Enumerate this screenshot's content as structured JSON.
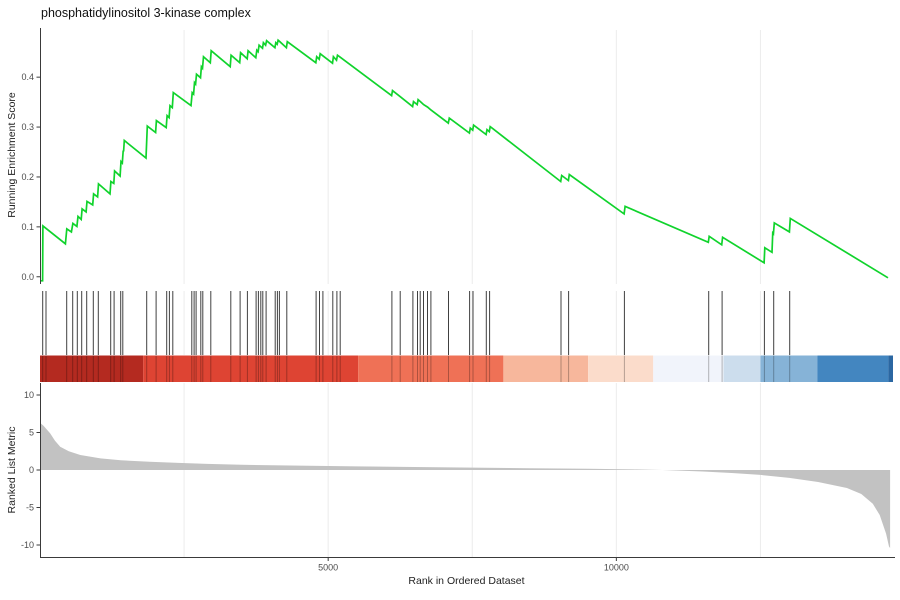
{
  "title": "phosphatidylinositol 3-kinase complex",
  "chart_data": {
    "type": "line",
    "subtype": "gsea-enrichment-plot",
    "xlabel": "Rank in Ordered Dataset",
    "xlim": [
      0,
      14800
    ],
    "x_ticks": [
      {
        "v": 5000,
        "label": "5000"
      },
      {
        "v": 10000,
        "label": "10000"
      }
    ],
    "x_gridlines": [
      2500,
      5000,
      7500,
      10000,
      12500
    ],
    "grid_color": "#ececec",
    "axis_color": "#3a3a3a",
    "tick_label_color": "#4d4d4d",
    "panels": {
      "running_score": {
        "ylabel": "Running Enrichment Score",
        "ylim": [
          -0.0145,
          0.4945
        ],
        "y_ticks": [
          {
            "v": 0.0,
            "label": "0.0"
          },
          {
            "v": 0.1,
            "label": "0.1"
          },
          {
            "v": 0.2,
            "label": "0.2"
          },
          {
            "v": 0.3,
            "label": "0.3"
          },
          {
            "v": 0.4,
            "label": "0.4"
          }
        ],
        "line_color": "#10d32c",
        "points": [
          [
            0,
            -0.008
          ],
          [
            45,
            -0.008
          ],
          [
            50,
            0.102
          ],
          [
            440,
            0.066
          ],
          [
            465,
            0.096
          ],
          [
            545,
            0.09
          ],
          [
            570,
            0.107
          ],
          [
            640,
            0.101
          ],
          [
            660,
            0.121
          ],
          [
            715,
            0.115
          ],
          [
            730,
            0.136
          ],
          [
            800,
            0.13
          ],
          [
            815,
            0.151
          ],
          [
            915,
            0.144
          ],
          [
            930,
            0.166
          ],
          [
            1000,
            0.16
          ],
          [
            1015,
            0.186
          ],
          [
            1215,
            0.166
          ],
          [
            1230,
            0.191
          ],
          [
            1280,
            0.187
          ],
          [
            1295,
            0.212
          ],
          [
            1390,
            0.202
          ],
          [
            1405,
            0.231
          ],
          [
            1428,
            0.228
          ],
          [
            1443,
            0.253
          ],
          [
            1450,
            0.251
          ],
          [
            1462,
            0.273
          ],
          [
            1840,
            0.238
          ],
          [
            1862,
            0.302
          ],
          [
            2005,
            0.289
          ],
          [
            2020,
            0.313
          ],
          [
            2190,
            0.299
          ],
          [
            2205,
            0.323
          ],
          [
            2240,
            0.319
          ],
          [
            2255,
            0.343
          ],
          [
            2295,
            0.339
          ],
          [
            2312,
            0.369
          ],
          [
            2620,
            0.343
          ],
          [
            2640,
            0.369
          ],
          [
            2665,
            0.366
          ],
          [
            2680,
            0.389
          ],
          [
            2700,
            0.386
          ],
          [
            2715,
            0.406
          ],
          [
            2785,
            0.399
          ],
          [
            2800,
            0.421
          ],
          [
            2820,
            0.418
          ],
          [
            2836,
            0.441
          ],
          [
            2955,
            0.429
          ],
          [
            2971,
            0.453
          ],
          [
            3300,
            0.421
          ],
          [
            3316,
            0.444
          ],
          [
            3465,
            0.429
          ],
          [
            3481,
            0.449
          ],
          [
            3595,
            0.437
          ],
          [
            3611,
            0.453
          ],
          [
            3745,
            0.439
          ],
          [
            3761,
            0.454
          ],
          [
            3785,
            0.451
          ],
          [
            3801,
            0.464
          ],
          [
            3860,
            0.458
          ],
          [
            3876,
            0.469
          ],
          [
            3915,
            0.464
          ],
          [
            3931,
            0.473
          ],
          [
            4075,
            0.459
          ],
          [
            4091,
            0.469
          ],
          [
            4115,
            0.466
          ],
          [
            4131,
            0.474
          ],
          [
            4152,
            0.472
          ],
          [
            4275,
            0.459
          ],
          [
            4291,
            0.471
          ],
          [
            4785,
            0.429
          ],
          [
            4801,
            0.441
          ],
          [
            4845,
            0.436
          ],
          [
            4861,
            0.447
          ],
          [
            4905,
            0.443
          ],
          [
            5075,
            0.428
          ],
          [
            5091,
            0.441
          ],
          [
            5145,
            0.434
          ],
          [
            5161,
            0.444
          ],
          [
            5208,
            0.44
          ],
          [
            6100,
            0.363
          ],
          [
            6116,
            0.373
          ],
          [
            6248,
            0.361
          ],
          [
            6465,
            0.341
          ],
          [
            6481,
            0.351
          ],
          [
            6545,
            0.345
          ],
          [
            6561,
            0.355
          ],
          [
            6600,
            0.351
          ],
          [
            6655,
            0.345
          ],
          [
            6725,
            0.34
          ],
          [
            6785,
            0.334
          ],
          [
            7085,
            0.308
          ],
          [
            7101,
            0.318
          ],
          [
            7450,
            0.288
          ],
          [
            7466,
            0.298
          ],
          [
            7508,
            0.294
          ],
          [
            7524,
            0.304
          ],
          [
            7740,
            0.285
          ],
          [
            7756,
            0.295
          ],
          [
            7795,
            0.291
          ],
          [
            7811,
            0.301
          ],
          [
            9035,
            0.191
          ],
          [
            9051,
            0.203
          ],
          [
            9168,
            0.193
          ],
          [
            9184,
            0.205
          ],
          [
            10135,
            0.126
          ],
          [
            10151,
            0.141
          ],
          [
            11595,
            0.069
          ],
          [
            11611,
            0.081
          ],
          [
            11828,
            0.064
          ],
          [
            11844,
            0.079
          ],
          [
            12563,
            0.028
          ],
          [
            12575,
            0.058
          ],
          [
            12700,
            0.049
          ],
          [
            12714,
            0.091
          ],
          [
            12726,
            0.088
          ],
          [
            12740,
            0.108
          ],
          [
            13002,
            0.09
          ],
          [
            13018,
            0.117
          ],
          [
            14713,
            -0.002
          ]
        ]
      },
      "hits": {
        "tick_color": "#262626",
        "ranks": [
          47,
          104,
          463,
          568,
          648,
          724,
          811,
          925,
          1012,
          1227,
          1285,
          1401,
          1436,
          1852,
          2014,
          2199,
          2245,
          2304,
          2633,
          2673,
          2708,
          2790,
          2824,
          2963,
          3311,
          3472,
          3599,
          3750,
          3790,
          3831,
          3866,
          3923,
          4080,
          4119,
          4154,
          4282,
          4791,
          4849,
          4908,
          5081,
          5151,
          5208,
          6106,
          6250,
          6470,
          6550,
          6597,
          6654,
          6724,
          6783,
          7088,
          7453,
          7512,
          7743,
          7800,
          9040,
          9172,
          10139,
          11602,
          11834,
          12569,
          12730,
          13008
        ]
      },
      "colorbar": {
        "segments": [
          {
            "from": 0,
            "to": 1790,
            "color": "#b42a20"
          },
          {
            "from": 1790,
            "to": 5520,
            "color": "#de4433"
          },
          {
            "from": 5520,
            "to": 8040,
            "color": "#ef7156"
          },
          {
            "from": 8040,
            "to": 9510,
            "color": "#f7b79c"
          },
          {
            "from": 9510,
            "to": 10640,
            "color": "#fbdccb"
          },
          {
            "from": 10640,
            "to": 11860,
            "color": "#f1f4fb"
          },
          {
            "from": 11860,
            "to": 12500,
            "color": "#ccdded"
          },
          {
            "from": 12500,
            "to": 13490,
            "color": "#86b3d7"
          },
          {
            "from": 13490,
            "to": 14720,
            "color": "#4386c0"
          },
          {
            "from": 14720,
            "to": 14800,
            "color": "#2b67a2"
          }
        ]
      },
      "ranked_metric": {
        "ylabel": "Ranked List Metric",
        "ylim": [
          -11.6,
          11.6
        ],
        "y_ticks": [
          {
            "v": -10,
            "label": "-10"
          },
          {
            "v": -5,
            "label": "-5"
          },
          {
            "v": 0,
            "label": "0"
          },
          {
            "v": 5,
            "label": "5"
          },
          {
            "v": 10,
            "label": "10"
          }
        ],
        "fill_color": "#c2c2c2",
        "points": [
          [
            0,
            6.3
          ],
          [
            60,
            5.9
          ],
          [
            175,
            4.9
          ],
          [
            260,
            3.9
          ],
          [
            350,
            3.1
          ],
          [
            500,
            2.5
          ],
          [
            700,
            2.0
          ],
          [
            1050,
            1.55
          ],
          [
            1400,
            1.3
          ],
          [
            1900,
            1.1
          ],
          [
            2400,
            0.95
          ],
          [
            2900,
            0.82
          ],
          [
            3500,
            0.7
          ],
          [
            4500,
            0.58
          ],
          [
            5500,
            0.48
          ],
          [
            6500,
            0.4
          ],
          [
            7500,
            0.32
          ],
          [
            8500,
            0.24
          ],
          [
            9500,
            0.16
          ],
          [
            10300,
            0.08
          ],
          [
            10800,
            0.0
          ],
          [
            11500,
            -0.2
          ],
          [
            12000,
            -0.4
          ],
          [
            12500,
            -0.65
          ],
          [
            13000,
            -1.05
          ],
          [
            13500,
            -1.6
          ],
          [
            14000,
            -2.4
          ],
          [
            14250,
            -3.2
          ],
          [
            14450,
            -4.5
          ],
          [
            14570,
            -6.0
          ],
          [
            14680,
            -8.5
          ],
          [
            14730,
            -10.2
          ],
          [
            14750,
            -10.4
          ]
        ]
      }
    }
  }
}
